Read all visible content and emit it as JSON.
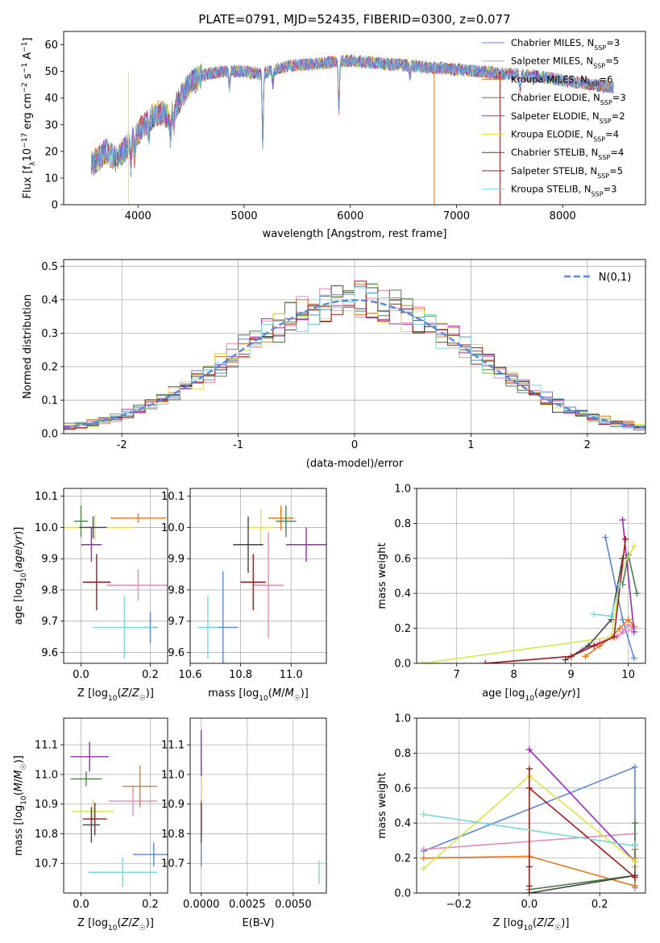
{
  "title": "PLATE=0791, MJD=52435, FIBERID=0300, z=0.077",
  "colors": [
    "#5b87d8",
    "#e589ba",
    "#e7761c",
    "#4a7f4a",
    "#9d2ab4",
    "#d6e84a",
    "#444444",
    "#a11b1b",
    "#79d8d8"
  ],
  "legend": [
    {
      "label": "Chabrier MILES, N",
      "sub": "SSP",
      "val": "=3"
    },
    {
      "label": "Salpeter MILES, N",
      "sub": "SSP",
      "val": "=5"
    },
    {
      "label": "Kroupa MILES, N",
      "sub": "SSP",
      "val": "=6"
    },
    {
      "label": "Chabrier ELODIE, N",
      "sub": "SSP",
      "val": "=3"
    },
    {
      "label": "Salpeter ELODIE, N",
      "sub": "SSP",
      "val": "=2"
    },
    {
      "label": "Kroupa ELODIE, N",
      "sub": "SSP",
      "val": "=4"
    },
    {
      "label": "Chabrier STELIB, N",
      "sub": "SSP",
      "val": "=4"
    },
    {
      "label": "Salpeter STELIB, N",
      "sub": "SSP",
      "val": "=5"
    },
    {
      "label": "Kroupa STELIB, N",
      "sub": "SSP",
      "val": "=3"
    }
  ],
  "chart_data": [
    {
      "id": "spectrum",
      "type": "line",
      "title": "PLATE=0791, MJD=52435, FIBERID=0300, z=0.077",
      "xlabel": "wavelength [Angstrom, rest frame]",
      "ylabel_parts": [
        "Flux [f",
        "λ",
        "10",
        "−17",
        " erg cm",
        "−2",
        " s",
        "−1",
        " A",
        "−1",
        "]"
      ],
      "xlim": [
        3300,
        8780
      ],
      "ylim": [
        0,
        65
      ],
      "xticks": [
        4000,
        5000,
        6000,
        7000,
        8000
      ],
      "yticks": [
        0,
        10,
        20,
        30,
        40,
        50,
        60
      ],
      "grid": false,
      "legend_loc": "upper right",
      "x_range_data": [
        3560,
        8480
      ],
      "continuum": {
        "x": [
          3560,
          3700,
          3800,
          3900,
          4000,
          4100,
          4200,
          4300,
          4400,
          4500,
          4650,
          4800,
          5000,
          5150,
          5400,
          5700,
          6000,
          6300,
          6600,
          6900,
          7200,
          7500,
          7800,
          8100,
          8480
        ],
        "y": [
          15,
          20,
          17,
          22,
          27,
          32,
          35,
          33,
          40,
          46,
          49,
          50,
          50,
          49,
          52,
          53,
          54,
          53,
          52,
          51,
          50,
          49,
          48,
          46,
          44
        ]
      }
    },
    {
      "id": "residuals",
      "type": "bar",
      "xlabel": "(data-model)/error",
      "ylabel": "Normed distribution",
      "xlim": [
        -2.5,
        2.5
      ],
      "ylim": [
        0,
        0.52
      ],
      "xticks": [
        -2,
        -1,
        0,
        1,
        2
      ],
      "yticks": [
        0.0,
        0.1,
        0.2,
        0.3,
        0.4,
        0.5
      ],
      "grid": true,
      "legend_loc": "upper right",
      "legend": "N(0,1)",
      "bin_width": 0.1
    },
    {
      "id": "age_vs_Z",
      "type": "scatter",
      "xlabel": "Z [log10(Z/Z☉)]",
      "ylabel": "age [log10(age/yr)]",
      "xlim": [
        -0.05,
        0.25
      ],
      "ylim": [
        9.565,
        10.125
      ],
      "xticks": [
        0.0,
        0.2
      ],
      "yticks": [
        9.6,
        9.7,
        9.8,
        9.9,
        10.0,
        10.1
      ],
      "grid": true,
      "points": [
        {
          "x": 0.2,
          "y": 9.68,
          "xerr": 0.02,
          "yerr": 0.05,
          "series": 0
        },
        {
          "x": 0.165,
          "y": 9.815,
          "xerr": 0.09,
          "yerr": 0.05,
          "series": 1
        },
        {
          "x": 0.165,
          "y": 10.03,
          "xerr": 0.08,
          "yerr": 0.015,
          "series": 2
        },
        {
          "x": 0.0,
          "y": 10.02,
          "xerr": 0.02,
          "yerr": 0.05,
          "series": 3
        },
        {
          "x": 0.03,
          "y": 9.945,
          "xerr": 0.03,
          "yerr": 0.055,
          "series": 4
        },
        {
          "x": 0.04,
          "y": 10.0,
          "xerr": 0.11,
          "yerr": 0.04,
          "series": 5
        },
        {
          "x": 0.035,
          "y": 10.0,
          "xerr": 0.04,
          "yerr": 0.035,
          "series": 6
        },
        {
          "x": 0.045,
          "y": 9.825,
          "xerr": 0.04,
          "yerr": 0.09,
          "series": 7
        },
        {
          "x": 0.125,
          "y": 9.68,
          "xerr": 0.09,
          "yerr": 0.1,
          "series": 8
        }
      ]
    },
    {
      "id": "age_vs_mass",
      "type": "scatter",
      "xlabel": "mass [log10(M/M☉)]",
      "ylabel": "",
      "xlim": [
        10.6,
        11.14
      ],
      "ylim": [
        9.565,
        10.125
      ],
      "xticks": [
        10.6,
        10.8,
        11.0
      ],
      "yticks": [
        9.6,
        9.7,
        9.8,
        9.9,
        10.0,
        10.1
      ],
      "grid": true,
      "points": [
        {
          "x": 10.73,
          "y": 9.68,
          "xerr": 0.06,
          "yerr": 0.18,
          "series": 0
        },
        {
          "x": 10.91,
          "y": 9.815,
          "xerr": 0.06,
          "yerr": 0.17,
          "series": 1
        },
        {
          "x": 10.96,
          "y": 10.03,
          "xerr": 0.05,
          "yerr": 0.04,
          "series": 2
        },
        {
          "x": 10.98,
          "y": 10.02,
          "xerr": 0.04,
          "yerr": 0.05,
          "series": 3
        },
        {
          "x": 11.06,
          "y": 9.945,
          "xerr": 0.08,
          "yerr": 0.055,
          "series": 4
        },
        {
          "x": 10.88,
          "y": 10.0,
          "xerr": 0.05,
          "yerr": 0.06,
          "series": 5
        },
        {
          "x": 10.83,
          "y": 9.945,
          "xerr": 0.06,
          "yerr": 0.09,
          "series": 6
        },
        {
          "x": 10.85,
          "y": 9.825,
          "xerr": 0.05,
          "yerr": 0.09,
          "series": 7
        },
        {
          "x": 10.67,
          "y": 9.68,
          "xerr": 0.04,
          "yerr": 0.1,
          "series": 8
        }
      ]
    },
    {
      "id": "weight_vs_age",
      "type": "line",
      "xlabel": "age [log10(age/yr)]",
      "ylabel": "mass weight",
      "xlim": [
        6.3,
        10.3
      ],
      "ylim": [
        0,
        1.0
      ],
      "xticks": [
        7,
        8,
        9,
        10
      ],
      "yticks": [
        0.0,
        0.2,
        0.4,
        0.6,
        0.8,
        1.0
      ],
      "grid": true,
      "series": [
        {
          "x": [
            10.1,
            9.9,
            9.6
          ],
          "y": [
            0.03,
            0.25,
            0.72
          ]
        },
        {
          "x": [
            9.8,
            9.9,
            10.0,
            10.1,
            9.5,
            9.2
          ],
          "y": [
            0.15,
            0.18,
            0.22,
            0.2,
            0.12,
            0.08
          ]
        },
        {
          "x": [
            9.25,
            9.5,
            9.7,
            9.85,
            10.0,
            10.1
          ],
          "y": [
            0.04,
            0.1,
            0.15,
            0.2,
            0.25,
            0.21
          ]
        },
        {
          "x": [
            10.15,
            10.0,
            9.9
          ],
          "y": [
            0.4,
            0.62,
            0.45
          ]
        },
        {
          "x": [
            9.9,
            10.1
          ],
          "y": [
            0.82,
            0.18
          ]
        },
        {
          "x": [
            6.4,
            9.7,
            9.9,
            10.1
          ],
          "y": [
            0.0,
            0.15,
            0.55,
            0.67
          ]
        },
        {
          "x": [
            8.9,
            9.3,
            9.7,
            9.9
          ],
          "y": [
            0.02,
            0.1,
            0.25,
            0.6
          ]
        },
        {
          "x": [
            7.5,
            9.0,
            9.4,
            9.75,
            9.95
          ],
          "y": [
            0.0,
            0.04,
            0.1,
            0.15,
            0.71
          ]
        },
        {
          "x": [
            9.4,
            9.7,
            9.85
          ],
          "y": [
            0.28,
            0.27,
            0.45
          ]
        }
      ]
    },
    {
      "id": "mass_vs_Z",
      "type": "scatter",
      "xlabel": "Z [log10(Z/Z☉)]",
      "ylabel": "mass [log10(M/M☉)]",
      "xlim": [
        -0.05,
        0.25
      ],
      "ylim": [
        10.6,
        11.19
      ],
      "xticks": [
        0.0,
        0.2
      ],
      "yticks": [
        10.7,
        10.8,
        10.9,
        11.0,
        11.1
      ],
      "grid": true,
      "points": [
        {
          "x": 0.21,
          "y": 10.73,
          "xerr": 0.06,
          "yerr": 0.04,
          "series": 0
        },
        {
          "x": 0.15,
          "y": 10.91,
          "xerr": 0.07,
          "yerr": 0.05,
          "series": 1
        },
        {
          "x": 0.17,
          "y": 10.96,
          "xerr": 0.05,
          "yerr": 0.07,
          "series": 2
        },
        {
          "x": 0.015,
          "y": 10.985,
          "xerr": 0.045,
          "yerr": 0.025,
          "series": 3
        },
        {
          "x": 0.025,
          "y": 11.06,
          "xerr": 0.055,
          "yerr": 0.05,
          "series": 4
        },
        {
          "x": 0.035,
          "y": 10.875,
          "xerr": 0.06,
          "yerr": 0.04,
          "series": 5
        },
        {
          "x": 0.03,
          "y": 10.83,
          "xerr": 0.025,
          "yerr": 0.06,
          "series": 6
        },
        {
          "x": 0.04,
          "y": 10.85,
          "xerr": 0.035,
          "yerr": 0.055,
          "series": 7
        },
        {
          "x": 0.12,
          "y": 10.67,
          "xerr": 0.1,
          "yerr": 0.05,
          "series": 8
        }
      ]
    },
    {
      "id": "mass_vs_ebv",
      "type": "scatter",
      "xlabel": "E(B-V)",
      "ylabel": "",
      "xlim": [
        -0.0006,
        0.0068
      ],
      "ylim": [
        10.6,
        11.19
      ],
      "xticks": [
        0.0,
        0.0025,
        0.005
      ],
      "xticklabels": [
        "0.0000",
        "0.0025",
        "0.0050"
      ],
      "yticks": [
        10.7,
        10.8,
        10.9,
        11.0,
        11.1
      ],
      "grid": true,
      "points": [
        {
          "x": 0.0,
          "y": 10.73,
          "xerr": 0,
          "yerr": 0.04,
          "series": 0
        },
        {
          "x": 0.0,
          "y": 10.91,
          "xerr": 0,
          "yerr": 0.05,
          "series": 1
        },
        {
          "x": 0.0,
          "y": 10.96,
          "xerr": 0,
          "yerr": 0.07,
          "series": 2
        },
        {
          "x": 0.0,
          "y": 10.985,
          "xerr": 0,
          "yerr": 0.025,
          "series": 3
        },
        {
          "x": 0.0,
          "y": 11.06,
          "xerr": 0,
          "yerr": 0.09,
          "series": 4
        },
        {
          "x": 0.0,
          "y": 10.955,
          "xerr": 0,
          "yerr": 0.04,
          "series": 5
        },
        {
          "x": 0.0,
          "y": 10.83,
          "xerr": 0,
          "yerr": 0.06,
          "series": 6
        },
        {
          "x": 0.0,
          "y": 10.85,
          "xerr": 0,
          "yerr": 0.055,
          "series": 7
        },
        {
          "x": 0.0064,
          "y": 10.67,
          "xerr": 0,
          "yerr": 0.04,
          "series": 8
        }
      ]
    },
    {
      "id": "weight_vs_Z",
      "type": "line",
      "xlabel": "Z [log10(Z/Z☉)]",
      "ylabel": "mass weight",
      "xlim": [
        -0.32,
        0.33
      ],
      "ylim": [
        0,
        1.0
      ],
      "xticks": [
        -0.2,
        0.0,
        0.2
      ],
      "yticks": [
        0.0,
        0.2,
        0.4,
        0.6,
        0.8,
        1.0
      ],
      "grid": true,
      "series": [
        {
          "x": [
            -0.3,
            0.3,
            0.3
          ],
          "y": [
            0.24,
            0.72,
            0.03
          ]
        },
        {
          "x": [
            -0.3,
            0.3,
            0.3,
            0.3
          ],
          "y": [
            0.25,
            0.34,
            0.2,
            0.15
          ]
        },
        {
          "x": [
            -0.3,
            0.0,
            0.3,
            0.3,
            0.3
          ],
          "y": [
            0.2,
            0.21,
            0.04,
            0.2,
            0.25
          ]
        },
        {
          "x": [
            0.0,
            0.3,
            0.3
          ],
          "y": [
            0.02,
            0.1,
            0.4
          ]
        },
        {
          "x": [
            0.0,
            0.3
          ],
          "y": [
            0.82,
            0.18
          ]
        },
        {
          "x": [
            -0.3,
            0.0,
            0.3
          ],
          "y": [
            0.14,
            0.67,
            0.18
          ]
        },
        {
          "x": [
            0.0,
            0.3
          ],
          "y": [
            0.0,
            0.1
          ]
        },
        {
          "x": [
            0.0,
            0.0,
            0.0,
            0.0,
            0.0,
            0.3
          ],
          "y": [
            0.0,
            0.04,
            0.15,
            0.71,
            0.6,
            0.09
          ]
        },
        {
          "x": [
            -0.3,
            0.3,
            0.3
          ],
          "y": [
            0.45,
            0.27,
            0.28
          ]
        }
      ]
    }
  ]
}
